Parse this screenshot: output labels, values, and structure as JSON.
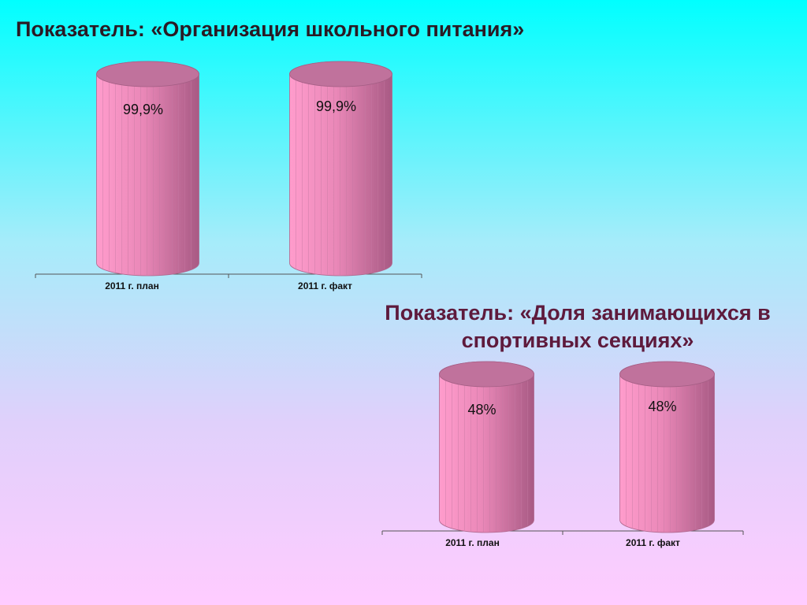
{
  "chart_data": [
    {
      "type": "cylinder-bar",
      "title": "Показатель: «Организация школьного питания»",
      "categories": [
        "2011 г. план",
        "2011 г. факт"
      ],
      "values": [
        99.9,
        99.9
      ],
      "value_labels": [
        "99,9%",
        "99,9%"
      ],
      "color": "#e58ab8"
    },
    {
      "type": "cylinder-bar",
      "title": "Показатель: «Доля занимающихся в спортивных секциях»",
      "categories": [
        "2011 г. план",
        "2011 г. факт"
      ],
      "values": [
        48,
        48
      ],
      "value_labels": [
        "48%",
        "48%"
      ],
      "color": "#e58ab8"
    }
  ]
}
